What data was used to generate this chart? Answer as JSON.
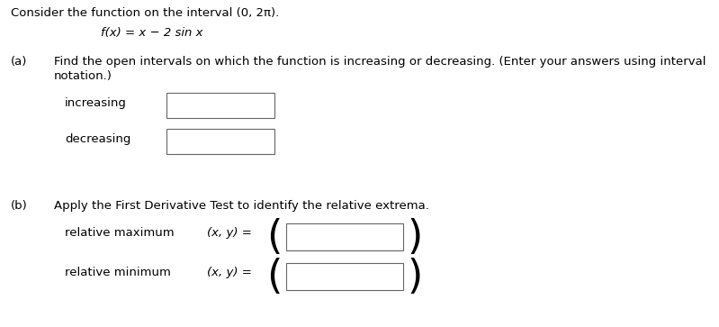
{
  "bg_color": "#ffffff",
  "text_color": "#000000",
  "title_line": "Consider the function on the interval (0, 2π).",
  "function_line": "f(x) = x − 2 sin x",
  "part_a_label": "(a)",
  "part_a_text1": "Find the open intervals on which the function is increasing or decreasing. (Enter your answers using interval",
  "part_a_text2": "notation.)",
  "increasing_label": "increasing",
  "decreasing_label": "decreasing",
  "part_b_label": "(b)",
  "part_b_text": "Apply the First Derivative Test to identify the relative extrema.",
  "rel_max_label": "relative maximum",
  "rel_min_label": "relative minimum",
  "xy_eq": "(x, y) =",
  "font_size": 9.5,
  "paren_font_size": 32
}
